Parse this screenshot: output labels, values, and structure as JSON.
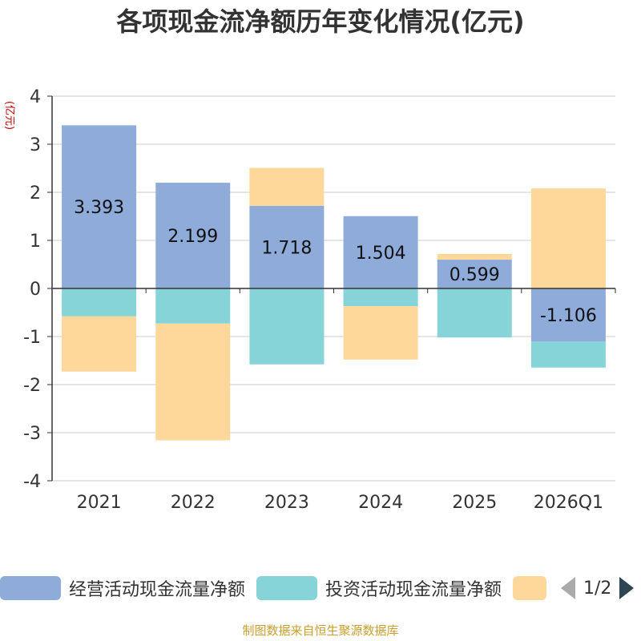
{
  "title": "各项现金流净额历年变化情况(亿元)",
  "source": "制图数据来自恒生聚源数据库",
  "pager": "1/2",
  "colors": {
    "operating": "#8eabd9",
    "investing": "#86d4d8",
    "financing": "#fdd89a",
    "axis": "#333333",
    "grid": "#cccccc",
    "unit": "#cc0000"
  },
  "chart_data": {
    "type": "bar",
    "stacked": true,
    "categories": [
      "2021",
      "2022",
      "2023",
      "2024",
      "2025",
      "2026Q1"
    ],
    "yunit": "(亿元)",
    "ylim": [
      -4,
      4
    ],
    "yticks": [
      4,
      3,
      2,
      1,
      0,
      -1,
      -2,
      -3,
      -4
    ],
    "grid": true,
    "legend_position": "bottom",
    "series": [
      {
        "name": "经营活动现金流量净额",
        "values": [
          3.393,
          2.199,
          1.718,
          1.504,
          0.599,
          -1.106
        ],
        "labels": [
          "3.393",
          "2.199",
          "1.718",
          "1.504",
          "0.599",
          "-1.106"
        ]
      },
      {
        "name": "投资活动现金流量净额",
        "values": [
          -0.58,
          -0.73,
          -1.58,
          -0.37,
          -1.02,
          -0.54
        ]
      },
      {
        "name": "",
        "values": [
          -1.15,
          -2.43,
          0.79,
          -1.11,
          0.12,
          2.08
        ]
      }
    ]
  }
}
